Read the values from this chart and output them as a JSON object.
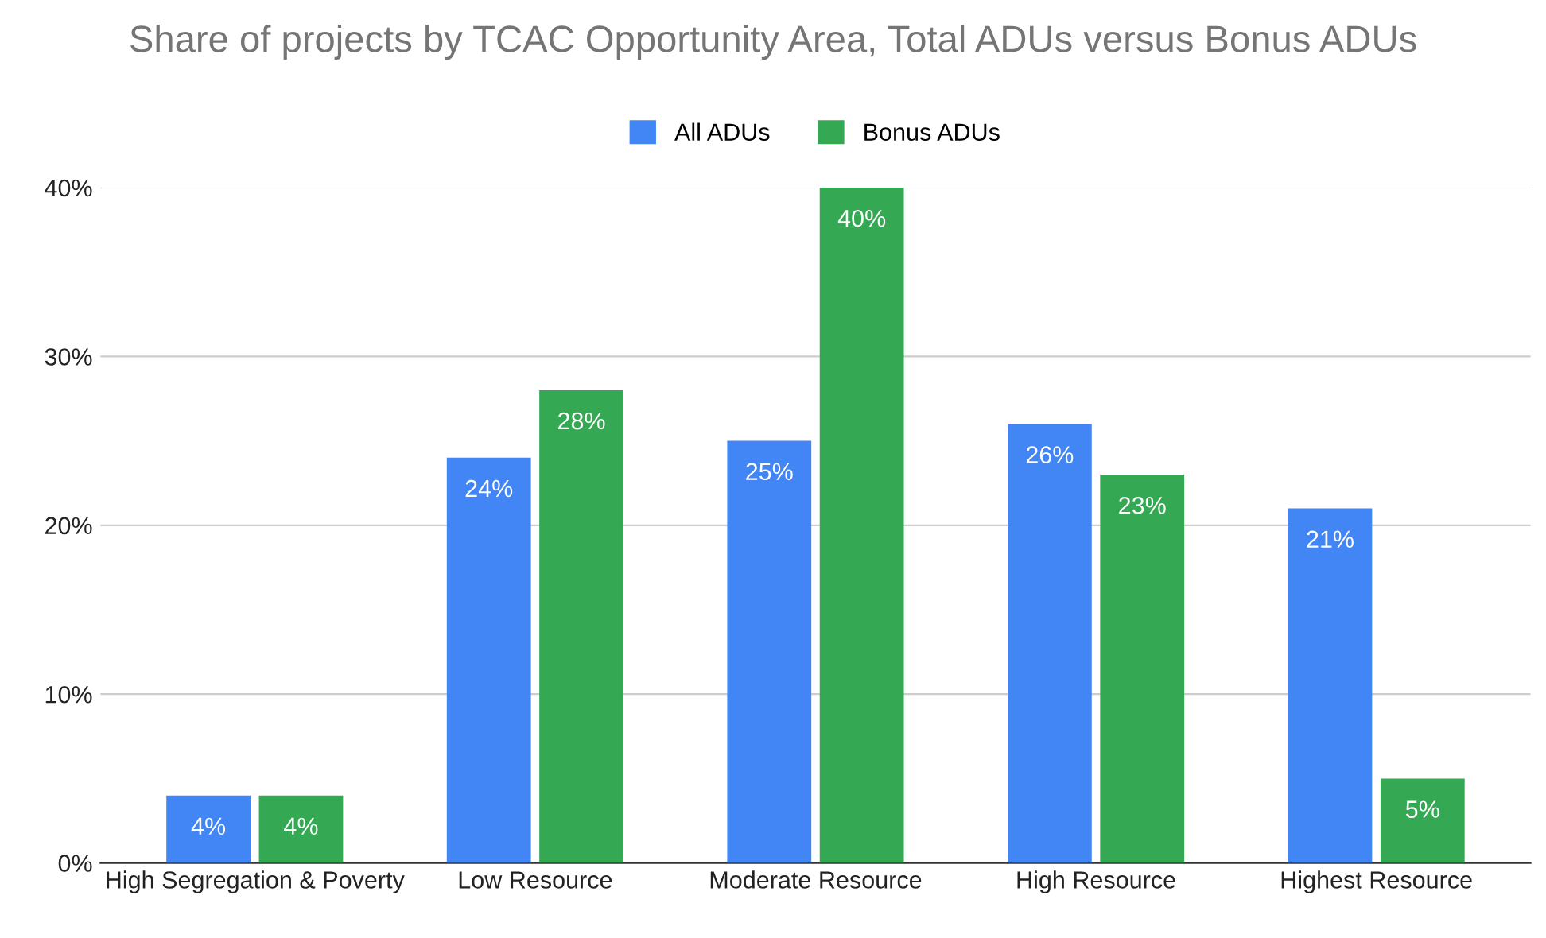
{
  "chart_data": {
    "type": "bar",
    "title": "Share of projects by TCAC Opportunity Area, Total ADUs versus Bonus ADUs",
    "categories": [
      "High Segregation & Poverty",
      "Low Resource",
      "Moderate Resource",
      "High Resource",
      "Highest Resource"
    ],
    "series": [
      {
        "name": "All ADUs",
        "color": "#4285f4",
        "values": [
          4,
          24,
          25,
          26,
          21
        ],
        "value_labels": [
          "4%",
          "24%",
          "25%",
          "26%",
          "21%"
        ]
      },
      {
        "name": "Bonus ADUs",
        "color": "#34a853",
        "values": [
          4,
          28,
          40,
          23,
          5
        ],
        "value_labels": [
          "4%",
          "28%",
          "40%",
          "23%",
          "5%"
        ]
      }
    ],
    "ylim": [
      0,
      40
    ],
    "yticks": [
      {
        "value": 0,
        "label": "0%"
      },
      {
        "value": 10,
        "label": "10%"
      },
      {
        "value": 20,
        "label": "20%"
      },
      {
        "value": 30,
        "label": "30%"
      },
      {
        "value": 40,
        "label": "40%"
      }
    ],
    "grid": "y",
    "legend": "top"
  }
}
